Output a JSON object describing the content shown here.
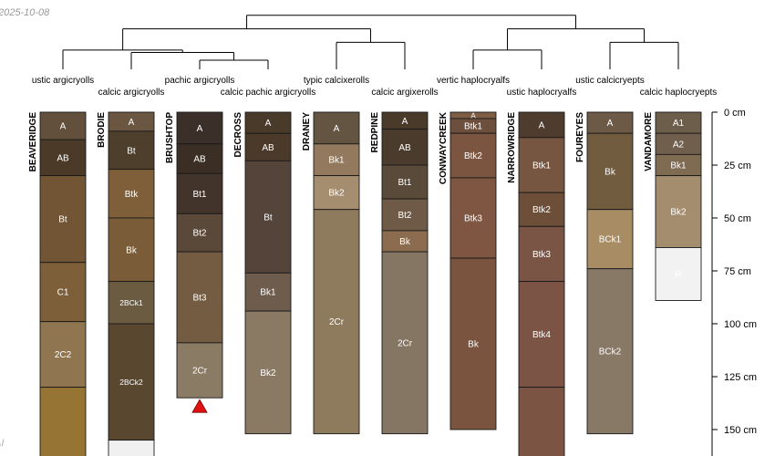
{
  "date_stamp": "2025-10-08",
  "credit_fragment": "AI",
  "chart_data": {
    "type": "soil-profile-sketch",
    "depth_unit": "cm",
    "axis_ticks": [
      0,
      25,
      50,
      75,
      100,
      125,
      150
    ],
    "dendrogram": {
      "tip_order": [
        "BEAVERIDGE",
        "BRODIE",
        "BRUSHTOP",
        "DECROSS",
        "DRANEY",
        "REDPINE",
        "CONWAYCREEK",
        "NARROWRIDGE",
        "FOUREYES",
        "VANDAMORE"
      ],
      "merges": [
        {
          "a": "BRUSHTOP",
          "b": "DECROSS",
          "height": 0.27
        },
        {
          "a": "BRODIE",
          "b": "BRUSHTOP+DECROSS",
          "height": 0.5
        },
        {
          "a": "BEAVERIDGE",
          "b": "BRODIE+BRUSHTOP+DECROSS",
          "height": 0.57
        },
        {
          "a": "DRANEY",
          "b": "REDPINE",
          "height": 0.8
        },
        {
          "a": "BEAVERIDGE+BRODIE+BRUSHTOP+DECROSS",
          "b": "DRANEY+REDPINE",
          "height": 1.2
        },
        {
          "a": "CONWAYCREEK",
          "b": "NARROWRIDGE",
          "height": 0.57
        },
        {
          "a": "FOUREYES",
          "b": "VANDAMORE",
          "height": 0.8
        },
        {
          "a": "CONWAYCREEK+NARROWRIDGE",
          "b": "FOUREYES+VANDAMORE",
          "height": 1.2
        },
        {
          "a": "left-group",
          "b": "right-group",
          "height": 1.6
        }
      ]
    },
    "profiles": [
      {
        "name": "BEAVERIDGE",
        "taxon": "ustic argicryolls",
        "horizons": [
          {
            "name": "A",
            "top": 0,
            "bottom": 13,
            "color": "#62503c"
          },
          {
            "name": "AB",
            "top": 13,
            "bottom": 30,
            "color": "#4b3a27"
          },
          {
            "name": "Bt",
            "top": 30,
            "bottom": 71,
            "color": "#725534"
          },
          {
            "name": "C1",
            "top": 71,
            "bottom": 99,
            "color": "#7d5f3a"
          },
          {
            "name": "2C2",
            "top": 99,
            "bottom": 130,
            "color": "#8f7650"
          },
          {
            "name": "",
            "top": 130,
            "bottom": 165,
            "color": "#967433"
          }
        ]
      },
      {
        "name": "BRODIE",
        "taxon": "calcic argicryolls",
        "horizons": [
          {
            "name": "A",
            "top": 0,
            "bottom": 9,
            "color": "#6a5641"
          },
          {
            "name": "Bt",
            "top": 9,
            "bottom": 27,
            "color": "#4e3e2c"
          },
          {
            "name": "Btk",
            "top": 27,
            "bottom": 50,
            "color": "#7e5f3a"
          },
          {
            "name": "Bk",
            "top": 50,
            "bottom": 80,
            "color": "#7a5c38"
          },
          {
            "name": "2BCk1",
            "top": 80,
            "bottom": 100,
            "color": "#6b5b40"
          },
          {
            "name": "2BCk2",
            "top": 100,
            "bottom": 155,
            "color": "#5a4730"
          },
          {
            "name": "",
            "top": 155,
            "bottom": 165,
            "color": "#f0f0f0"
          }
        ]
      },
      {
        "name": "BRUSHTOP",
        "taxon": "pachic argicryolls",
        "marker": "bedrock",
        "horizons": [
          {
            "name": "A",
            "top": 0,
            "bottom": 15,
            "color": "#3a3029"
          },
          {
            "name": "AB",
            "top": 15,
            "bottom": 29,
            "color": "#3b2f25"
          },
          {
            "name": "Bt1",
            "top": 29,
            "bottom": 48,
            "color": "#42342a"
          },
          {
            "name": "Bt2",
            "top": 48,
            "bottom": 66,
            "color": "#5a4838"
          },
          {
            "name": "Bt3",
            "top": 66,
            "bottom": 109,
            "color": "#735c42"
          },
          {
            "name": "2Cr",
            "top": 109,
            "bottom": 135,
            "color": "#8a7b64"
          }
        ]
      },
      {
        "name": "DECROSS",
        "taxon": "calcic pachic argicryolls",
        "horizons": [
          {
            "name": "A",
            "top": 0,
            "bottom": 10,
            "color": "#4a3a2a"
          },
          {
            "name": "AB",
            "top": 10,
            "bottom": 23,
            "color": "#4b3a2a"
          },
          {
            "name": "Bt",
            "top": 23,
            "bottom": 76,
            "color": "#54443a"
          },
          {
            "name": "Bk1",
            "top": 76,
            "bottom": 94,
            "color": "#6e5c4c"
          },
          {
            "name": "Bk2",
            "top": 94,
            "bottom": 152,
            "color": "#8a7a64"
          }
        ]
      },
      {
        "name": "DRANEY",
        "taxon": "typic calcixerolls",
        "horizons": [
          {
            "name": "A",
            "top": 0,
            "bottom": 15,
            "color": "#645442"
          },
          {
            "name": "Bk1",
            "top": 15,
            "bottom": 30,
            "color": "#937a5f"
          },
          {
            "name": "Bk2",
            "top": 30,
            "bottom": 46,
            "color": "#a58d70"
          },
          {
            "name": "2Cr",
            "top": 46,
            "bottom": 152,
            "color": "#8e7a5c"
          }
        ]
      },
      {
        "name": "REDPINE",
        "taxon": "calcic argixerolls",
        "horizons": [
          {
            "name": "A",
            "top": 0,
            "bottom": 8,
            "color": "#4a3a2a"
          },
          {
            "name": "AB",
            "top": 8,
            "bottom": 25,
            "color": "#4a3b2d"
          },
          {
            "name": "Bt1",
            "top": 25,
            "bottom": 41,
            "color": "#5a4a3a"
          },
          {
            "name": "Bt2",
            "top": 41,
            "bottom": 56,
            "color": "#6e5a46"
          },
          {
            "name": "Bk",
            "top": 56,
            "bottom": 66,
            "color": "#8b6c4e"
          },
          {
            "name": "2Cr",
            "top": 66,
            "bottom": 152,
            "color": "#857563"
          }
        ]
      },
      {
        "name": "CONWAYCREEK",
        "taxon": "vertic haplocryalfs",
        "horizons": [
          {
            "name": "A",
            "top": 0,
            "bottom": 3,
            "color": "#7d5e44"
          },
          {
            "name": "Btk1",
            "top": 3,
            "bottom": 10,
            "color": "#6d4f3d"
          },
          {
            "name": "Btk2",
            "top": 10,
            "bottom": 31,
            "color": "#7c5540"
          },
          {
            "name": "Btk3",
            "top": 31,
            "bottom": 69,
            "color": "#7e5642"
          },
          {
            "name": "Bk",
            "top": 69,
            "bottom": 150,
            "color": "#7b5440"
          }
        ]
      },
      {
        "name": "NARROWRIDGE",
        "taxon": "ustic haplocryalfs",
        "horizons": [
          {
            "name": "A",
            "top": 0,
            "bottom": 12,
            "color": "#4e3c2e"
          },
          {
            "name": "Btk1",
            "top": 12,
            "bottom": 38,
            "color": "#765640"
          },
          {
            "name": "Btk2",
            "top": 38,
            "bottom": 54,
            "color": "#6d4e38"
          },
          {
            "name": "Btk3",
            "top": 54,
            "bottom": 80,
            "color": "#7a5444"
          },
          {
            "name": "Btk4",
            "top": 80,
            "bottom": 130,
            "color": "#7c5445"
          },
          {
            "name": "",
            "top": 130,
            "bottom": 165,
            "color": "#7c5444"
          }
        ]
      },
      {
        "name": "FOUREYES",
        "taxon": "ustic calcicryepts",
        "horizons": [
          {
            "name": "A",
            "top": 0,
            "bottom": 10,
            "color": "#6c5a46"
          },
          {
            "name": "Bk",
            "top": 10,
            "bottom": 46,
            "color": "#725c40"
          },
          {
            "name": "BCk1",
            "top": 46,
            "bottom": 74,
            "color": "#a88c64"
          },
          {
            "name": "BCk2",
            "top": 74,
            "bottom": 152,
            "color": "#887866"
          }
        ]
      },
      {
        "name": "VANDAMORE",
        "taxon": "calcic haplocryepts",
        "horizons": [
          {
            "name": "A1",
            "top": 0,
            "bottom": 10,
            "color": "#6d5d4b"
          },
          {
            "name": "A2",
            "top": 10,
            "bottom": 20,
            "color": "#6f5f4c"
          },
          {
            "name": "Bk1",
            "top": 20,
            "bottom": 30,
            "color": "#7f6a52"
          },
          {
            "name": "Bk2",
            "top": 30,
            "bottom": 64,
            "color": "#a48c6e"
          },
          {
            "name": "R",
            "top": 64,
            "bottom": 89,
            "color": "#f2f2f2"
          }
        ]
      }
    ]
  }
}
